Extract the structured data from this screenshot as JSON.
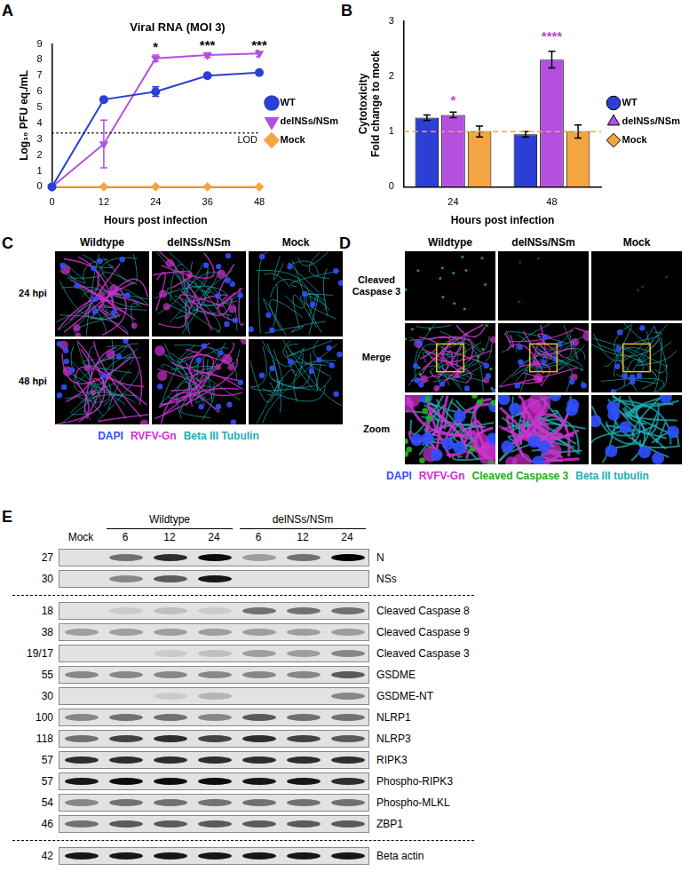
{
  "chart_data": [
    {
      "panel": "A",
      "type": "line",
      "title": "Viral RNA (MOI 3)",
      "x_label": "Hours post infection",
      "y_label": "Log₁₀ PFU eq./mL",
      "x": [
        0,
        12,
        24,
        36,
        48
      ],
      "series": [
        {
          "name": "WT",
          "color": "#2b3fd6",
          "marker": "circle",
          "values": [
            0,
            5.5,
            6.0,
            7.0,
            7.2
          ],
          "errors": [
            null,
            0.1,
            0.3,
            0.1,
            0.1
          ]
        },
        {
          "name": "delNSs/NSm",
          "color": "#b44fe0",
          "marker": "triangle_down",
          "values": [
            0,
            2.7,
            8.1,
            8.3,
            8.4
          ],
          "errors": [
            null,
            1.5,
            0.2,
            0.15,
            0.2
          ]
        },
        {
          "name": "Mock",
          "color": "#f5a442",
          "marker": "diamond",
          "values": [
            0,
            0,
            0,
            0,
            0
          ],
          "errors": [
            null,
            null,
            null,
            null,
            null
          ]
        }
      ],
      "xlim": [
        0,
        48
      ],
      "xticks": [
        0,
        12,
        24,
        36,
        48
      ],
      "ylim": [
        0,
        9
      ],
      "yticks": [
        0,
        1,
        2,
        3,
        4,
        5,
        6,
        7,
        8,
        9
      ],
      "grid": false,
      "legend": "right",
      "reference_lines": [
        {
          "y": 3.4,
          "label": "LOD",
          "color": "#000000",
          "line_style": "dotted"
        }
      ],
      "annotations": [
        {
          "x": 24,
          "y": 8.55,
          "text": "*",
          "color": "#000000"
        },
        {
          "x": 36,
          "y": 8.7,
          "text": "***",
          "color": "#000000"
        },
        {
          "x": 48,
          "y": 8.7,
          "text": "***",
          "color": "#000000"
        }
      ]
    },
    {
      "panel": "B",
      "type": "bar",
      "x_label": "Hours post infection",
      "y_label": [
        "Cytotoxicity",
        "Fold change to mock"
      ],
      "categories": [
        "24",
        "48"
      ],
      "series": [
        {
          "name": "WT",
          "color": "#2b3fd6",
          "marker": "circle",
          "values": [
            1.25,
            0.95
          ],
          "errors": [
            0.05,
            0.05
          ]
        },
        {
          "name": "delNSs/NSm",
          "color": "#b44fe0",
          "marker": "triangle_down",
          "values": [
            1.3,
            2.3
          ],
          "errors": [
            0.05,
            0.15
          ]
        },
        {
          "name": "Mock",
          "color": "#f5a442",
          "marker": "diamond",
          "values": [
            1.0,
            1.0
          ],
          "errors": [
            0.1,
            0.12
          ]
        }
      ],
      "ylim": [
        0,
        3
      ],
      "yticks": [
        0,
        1,
        2,
        3
      ],
      "grid": false,
      "legend": "right",
      "reference_lines": [
        {
          "y": 1,
          "color": "#f5a442",
          "line_style": "dashed"
        }
      ],
      "annotations": [
        {
          "x": "24",
          "y": 1.5,
          "text": "*",
          "color": "#c03fd6"
        },
        {
          "x": "48",
          "y": 2.65,
          "text": "****",
          "color": "#c03fd6"
        }
      ]
    }
  ],
  "micrographs": [
    {
      "panel": "C",
      "columns": [
        "Wildtype",
        "delNSs/NSm",
        "Mock"
      ],
      "rows": [
        "24 hpi",
        "48 hpi"
      ],
      "channels": [
        {
          "name": "DAPI",
          "color": "#3050ff"
        },
        {
          "name": "RVFV-Gn",
          "color": "#d030d0"
        },
        {
          "name": "Beta III Tubulin",
          "color": "#20b0b8"
        }
      ]
    },
    {
      "panel": "D",
      "columns": [
        "Wildtype",
        "delNSs/NSm",
        "Mock"
      ],
      "rows": [
        "Cleaved Caspase 3",
        "Merge",
        "Zoom"
      ],
      "channels": [
        {
          "name": "DAPI",
          "color": "#3050ff"
        },
        {
          "name": "RVFV-Gn",
          "color": "#d030d0"
        },
        {
          "name": "Cleaved Caspase 3",
          "color": "#20b020"
        },
        {
          "name": "Beta III tubulin",
          "color": "#20b0b8"
        }
      ]
    }
  ],
  "blot": {
    "panel": "E",
    "groups": [
      {
        "label": "Mock",
        "lanes": [
          null
        ]
      },
      {
        "label": "Wildtype",
        "lanes": [
          "6",
          "12",
          "24"
        ]
      },
      {
        "label": "delNSs/NSm",
        "lanes": [
          "6",
          "12",
          "24"
        ]
      }
    ],
    "sections": [
      [
        {
          "mw": "27",
          "label": "N",
          "intensity": [
            0,
            0.5,
            0.8,
            0.95,
            0.3,
            0.5,
            1
          ]
        },
        {
          "mw": "30",
          "label": "NSs",
          "intensity": [
            0,
            0.4,
            0.6,
            0.9,
            0,
            0,
            0
          ]
        }
      ],
      [
        {
          "mw": "18",
          "label": "Cleaved Caspase 8",
          "intensity": [
            0,
            0.1,
            0.15,
            0.1,
            0.5,
            0.5,
            0.5
          ]
        },
        {
          "mw": "38",
          "label": "Cleaved Caspase 9",
          "intensity": [
            0.3,
            0.3,
            0.3,
            0.3,
            0.3,
            0.3,
            0.3
          ]
        },
        {
          "mw": "19/17",
          "label": "Cleaved Caspase 3",
          "intensity": [
            0,
            0,
            0.1,
            0.15,
            0.3,
            0.3,
            0.4
          ]
        },
        {
          "mw": "55",
          "label": "GSDME",
          "intensity": [
            0.4,
            0.4,
            0.4,
            0.4,
            0.4,
            0.4,
            0.6
          ]
        },
        {
          "mw": "30",
          "label": "GSDME-NT",
          "intensity": [
            0,
            0,
            0.1,
            0.2,
            0,
            0,
            0.4
          ]
        },
        {
          "mw": "100",
          "label": "NLRP1",
          "intensity": [
            0.4,
            0.5,
            0.5,
            0.4,
            0.6,
            0.5,
            0.5
          ]
        },
        {
          "mw": "118",
          "label": "NLRP3",
          "intensity": [
            0.5,
            0.7,
            0.8,
            0.7,
            0.8,
            0.7,
            0.6
          ]
        },
        {
          "mw": "57",
          "label": "RIPK3",
          "intensity": [
            0.8,
            0.8,
            0.8,
            0.8,
            0.8,
            0.8,
            0.8
          ]
        },
        {
          "mw": "57",
          "label": "Phospho-RIPK3",
          "intensity": [
            0.9,
            0.95,
            0.95,
            0.95,
            0.9,
            0.9,
            0.8
          ]
        },
        {
          "mw": "54",
          "label": "Phospho-MLKL",
          "intensity": [
            0.4,
            0.5,
            0.5,
            0.5,
            0.5,
            0.5,
            0.5
          ]
        },
        {
          "mw": "46",
          "label": "ZBP1",
          "intensity": [
            0.5,
            0.6,
            0.6,
            0.6,
            0.6,
            0.6,
            0.6
          ]
        }
      ],
      [
        {
          "mw": "42",
          "label": "Beta actin",
          "intensity": [
            0.9,
            0.9,
            0.9,
            0.9,
            0.9,
            0.9,
            0.9
          ]
        }
      ]
    ]
  }
}
